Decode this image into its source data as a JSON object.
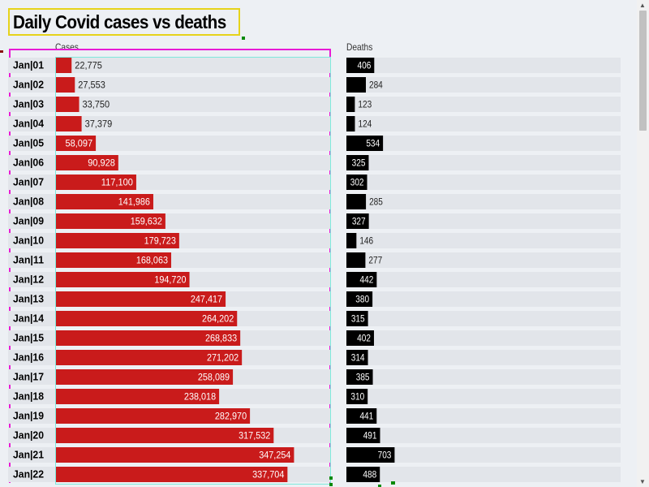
{
  "page_title": "Daily Covid cases vs deaths",
  "chart_data": {
    "type": "bar",
    "orientation": "horizontal",
    "categories": [
      "Jan|01",
      "Jan|02",
      "Jan|03",
      "Jan|04",
      "Jan|05",
      "Jan|06",
      "Jan|07",
      "Jan|08",
      "Jan|09",
      "Jan|10",
      "Jan|11",
      "Jan|12",
      "Jan|13",
      "Jan|14",
      "Jan|15",
      "Jan|16",
      "Jan|17",
      "Jan|18",
      "Jan|19",
      "Jan|20",
      "Jan|21",
      "Jan|22"
    ],
    "series": [
      {
        "name": "Cases",
        "color": "#c91b1b",
        "values": [
          22775,
          27553,
          33750,
          37379,
          58097,
          90928,
          117100,
          141986,
          159632,
          179723,
          168063,
          194720,
          247417,
          264202,
          268833,
          271202,
          258089,
          238018,
          282970,
          317532,
          347254,
          337704
        ],
        "labels": [
          "22,775",
          "27,553",
          "33,750",
          "37,379",
          "58,097",
          "90,928",
          "117,100",
          "141,986",
          "159,632",
          "179,723",
          "168,063",
          "194,720",
          "247,417",
          "264,202",
          "268,833",
          "271,202",
          "258,089",
          "238,018",
          "282,970",
          "317,532",
          "347,254",
          "337,704"
        ],
        "max": 400000
      },
      {
        "name": "Deaths",
        "color": "#000000",
        "values": [
          406,
          284,
          123,
          124,
          534,
          325,
          302,
          285,
          327,
          146,
          277,
          442,
          380,
          315,
          402,
          314,
          385,
          310,
          441,
          491,
          703,
          488
        ],
        "labels": [
          "406",
          "284",
          "123",
          "124",
          "534",
          "325",
          "302",
          "285",
          "327",
          "146",
          "277",
          "442",
          "380",
          "315",
          "402",
          "314",
          "385",
          "310",
          "441",
          "491",
          "703",
          "488"
        ],
        "max": 4000
      }
    ],
    "grid": false,
    "legend": "none"
  }
}
